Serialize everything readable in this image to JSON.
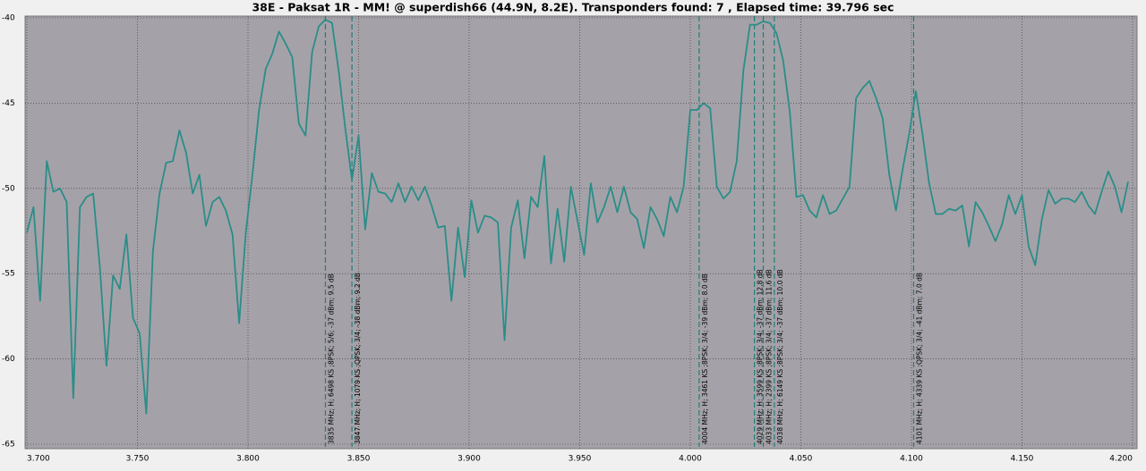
{
  "chart_data": {
    "type": "line",
    "title": "38E - Paksat 1R - MM! @ superdish66 (44.9N, 8.2E). Transponders found: 7 , Elapsed time: 39.796 sec",
    "x": [
      3.7,
      3.703,
      3.706,
      3.709,
      3.712,
      3.715,
      3.718,
      3.721,
      3.724,
      3.727,
      3.73,
      3.733,
      3.736,
      3.739,
      3.742,
      3.745,
      3.748,
      3.751,
      3.754,
      3.757,
      3.76,
      3.763,
      3.766,
      3.769,
      3.772,
      3.775,
      3.778,
      3.781,
      3.784,
      3.787,
      3.79,
      3.793,
      3.796,
      3.799,
      3.802,
      3.805,
      3.808,
      3.811,
      3.814,
      3.817,
      3.82,
      3.823,
      3.826,
      3.829,
      3.832,
      3.835,
      3.838,
      3.841,
      3.844,
      3.847,
      3.85,
      3.853,
      3.856,
      3.859,
      3.862,
      3.865,
      3.868,
      3.871,
      3.874,
      3.877,
      3.88,
      3.883,
      3.886,
      3.889,
      3.892,
      3.895,
      3.898,
      3.901,
      3.904,
      3.907,
      3.91,
      3.913,
      3.916,
      3.919,
      3.922,
      3.925,
      3.928,
      3.931,
      3.934,
      3.937,
      3.94,
      3.943,
      3.946,
      3.949,
      3.952,
      3.955,
      3.958,
      3.961,
      3.964,
      3.967,
      3.97,
      3.973,
      3.976,
      3.979,
      3.982,
      3.985,
      3.988,
      3.991,
      3.994,
      3.997,
      4.0,
      4.003,
      4.006,
      4.009,
      4.012,
      4.015,
      4.018,
      4.021,
      4.024,
      4.027,
      4.03,
      4.033,
      4.036,
      4.039,
      4.042,
      4.045,
      4.048,
      4.051,
      4.054,
      4.057,
      4.06,
      4.063,
      4.066,
      4.069,
      4.072,
      4.075,
      4.078,
      4.081,
      4.084,
      4.087,
      4.09,
      4.093,
      4.096,
      4.099,
      4.102,
      4.105,
      4.108,
      4.111,
      4.114,
      4.117,
      4.12,
      4.123,
      4.126,
      4.129,
      4.132,
      4.135,
      4.138,
      4.141,
      4.144,
      4.147,
      4.15,
      4.153,
      4.156,
      4.159,
      4.162,
      4.165,
      4.168,
      4.171,
      4.174,
      4.177,
      4.18,
      4.183,
      4.186,
      4.189,
      4.192,
      4.195,
      4.198
    ],
    "series": [
      {
        "color": "#2a8d89",
        "values": [
          -52.6,
          -51.1,
          -56.6,
          -48.4,
          -50.2,
          -50.0,
          -50.8,
          -62.3,
          -51.1,
          -50.5,
          -50.3,
          -54.6,
          -60.4,
          -55.1,
          -55.9,
          -52.7,
          -57.6,
          -58.5,
          -63.2,
          -53.7,
          -50.3,
          -48.5,
          -48.4,
          -46.6,
          -47.9,
          -50.3,
          -49.2,
          -52.2,
          -50.8,
          -50.5,
          -51.3,
          -52.7,
          -57.9,
          -52.6,
          -49.2,
          -45.4,
          -43.0,
          -42.1,
          -40.8,
          -41.5,
          -42.3,
          -46.2,
          -46.9,
          -42.0,
          -40.5,
          -40.1,
          -40.3,
          -43.1,
          -46.5,
          -49.5,
          -46.9,
          -52.4,
          -49.1,
          -50.2,
          -50.3,
          -50.8,
          -49.7,
          -50.8,
          -49.9,
          -50.7,
          -49.9,
          -51.0,
          -52.3,
          -52.2,
          -56.6,
          -52.3,
          -55.2,
          -50.7,
          -52.6,
          -51.6,
          -51.7,
          -52.0,
          -58.9,
          -52.3,
          -50.7,
          -54.1,
          -50.5,
          -51.1,
          -48.1,
          -54.4,
          -51.2,
          -54.3,
          -49.9,
          -51.9,
          -53.9,
          -49.7,
          -52.0,
          -51.1,
          -49.9,
          -51.4,
          -49.9,
          -51.4,
          -51.8,
          -53.5,
          -51.1,
          -51.8,
          -52.8,
          -50.5,
          -51.4,
          -49.9,
          -45.4,
          -45.4,
          -45.0,
          -45.3,
          -49.9,
          -50.6,
          -50.2,
          -48.4,
          -43.1,
          -40.4,
          -40.4,
          -40.2,
          -40.3,
          -40.9,
          -42.5,
          -45.5,
          -50.5,
          -50.4,
          -51.3,
          -51.7,
          -50.4,
          -51.5,
          -51.3,
          -50.6,
          -49.9,
          -44.7,
          -44.1,
          -43.7,
          -44.7,
          -45.9,
          -49.2,
          -51.3,
          -48.9,
          -46.8,
          -44.3,
          -46.8,
          -49.7,
          -51.5,
          -51.5,
          -51.2,
          -51.3,
          -51.0,
          -53.4,
          -50.8,
          -51.4,
          -52.2,
          -53.1,
          -52.1,
          -50.4,
          -51.5,
          -50.4,
          -53.4,
          -54.5,
          -51.8,
          -50.1,
          -50.9,
          -50.6,
          -50.6,
          -50.8,
          -50.2,
          -51.0,
          -51.5,
          -50.2,
          -49.0,
          -49.9,
          -51.4,
          -49.6
        ]
      }
    ],
    "xlim": [
      3.7,
      4.2
    ],
    "xticks": [
      {
        "value": 3.7,
        "label": "3.700"
      },
      {
        "value": 3.75,
        "label": "3.750"
      },
      {
        "value": 3.8,
        "label": "3.800"
      },
      {
        "value": 3.85,
        "label": "3.850"
      },
      {
        "value": 3.9,
        "label": "3.900"
      },
      {
        "value": 3.95,
        "label": "3.950"
      },
      {
        "value": 4.0,
        "label": "4.000"
      },
      {
        "value": 4.05,
        "label": "4.050"
      },
      {
        "value": 4.1,
        "label": "4.100"
      },
      {
        "value": 4.15,
        "label": "4.150"
      },
      {
        "value": 4.2,
        "label": "4.200"
      }
    ],
    "ylim": [
      -65,
      -40
    ],
    "yticks": [
      -40,
      -45,
      -50,
      -55,
      -60,
      -65
    ],
    "grid": true,
    "annotations": [
      {
        "x": 3.835,
        "label": "3835 MHz; H; 6498 KS ;8PSK; 5/6; -37 dBm; 9.5 dB"
      },
      {
        "x": 3.847,
        "label": "3847 MHz; H; 1079 KS ;QPSK; 3/4; -38 dBm; 9.2 dB"
      },
      {
        "x": 4.004,
        "label": "4004 MHz; H; 3461 KS ;8PSK; 3/4; -39 dBm; 8.0 dB"
      },
      {
        "x": 4.029,
        "label": "4029 MHz; H; 3599 KS ;8PSK; 3/4; -37 dBm; 12.8 dB"
      },
      {
        "x": 4.033,
        "label": "4033 MHz; H; 2399 KS ;8PSK; 3/4; -37 dBm; 11.6 dB"
      },
      {
        "x": 4.038,
        "label": "4038 MHz; H; 6149 KS ;8PSK; 3/4; -37 dBm; 10.0 dB"
      },
      {
        "x": 4.101,
        "label": "4101 MHz; H; 4339 KS ;QPSK; 3/4; -41 dBm; 7.0 dB"
      }
    ]
  }
}
